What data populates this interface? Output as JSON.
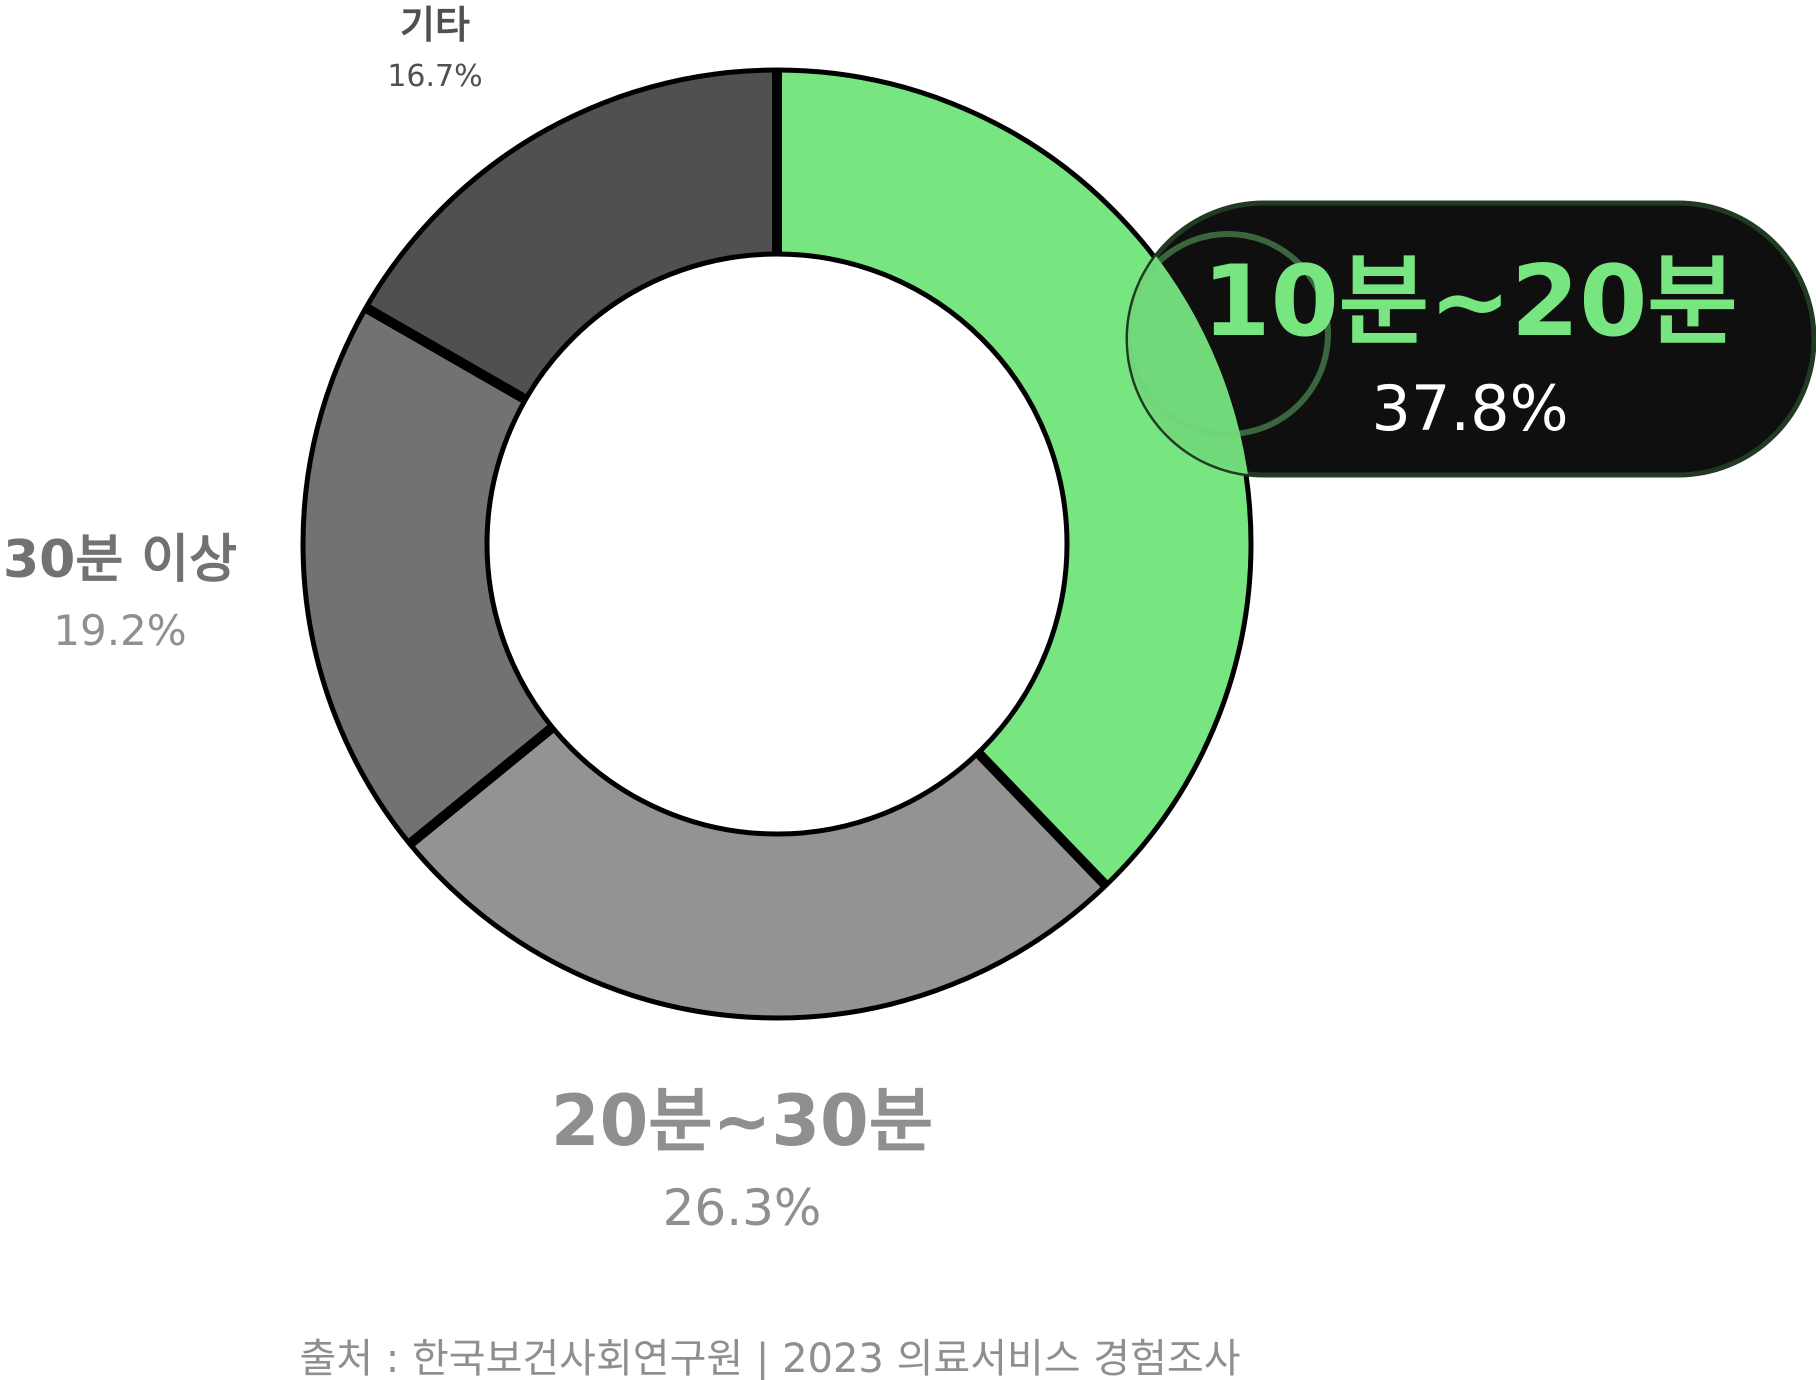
{
  "chart_data": {
    "type": "pie",
    "variant": "donut",
    "slices": [
      {
        "label": "10분~20분",
        "value": 37.8,
        "value_label": "37.8%",
        "color": "#77e580",
        "highlight": true
      },
      {
        "label": "20분~30분",
        "value": 26.3,
        "value_label": "26.3%",
        "color": "#939393"
      },
      {
        "label": "30분 이상",
        "value": 19.2,
        "value_label": "19.2%",
        "color": "#727272"
      },
      {
        "label": "기타",
        "value": 16.7,
        "value_label": "16.7%",
        "color": "#505050"
      }
    ],
    "source": "출처 : 한국보건사회연구원 | 2023 의료서비스 경험조사"
  },
  "colors": {
    "accent": "#77e580",
    "callout_bg": "#0f0f0f",
    "label_gray": "#8f8f8f",
    "label_dark": "#505050",
    "outline": "#000000"
  }
}
